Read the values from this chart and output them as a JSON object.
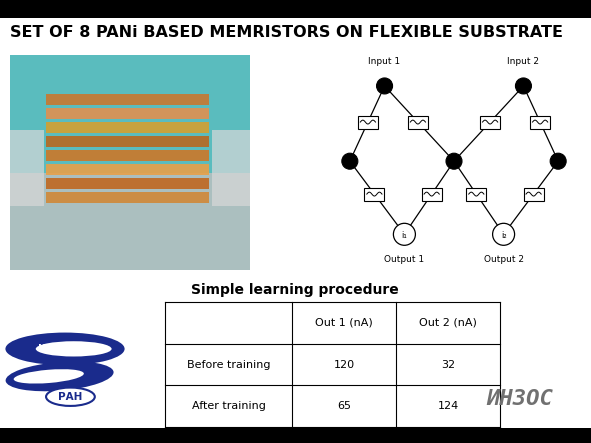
{
  "title": "SET OF 8 PANi BASED MEMRISTORS ON FLEXIBLE SUBSTRATE",
  "subtitle": "Simple learning procedure",
  "bg_color": "#ffffff",
  "title_color": "#000000",
  "title_fontsize": 11.5,
  "subtitle_fontsize": 10,
  "table_header": [
    "",
    "Out 1 (nA)",
    "Out 2 (nA)"
  ],
  "table_rows": [
    [
      "Before training",
      "120",
      "32"
    ],
    [
      "After training",
      "65",
      "124"
    ]
  ],
  "logo_blue": "#1a2b8c",
  "logo_text_color": "#ffffff",
  "inzos_color": "#888888"
}
